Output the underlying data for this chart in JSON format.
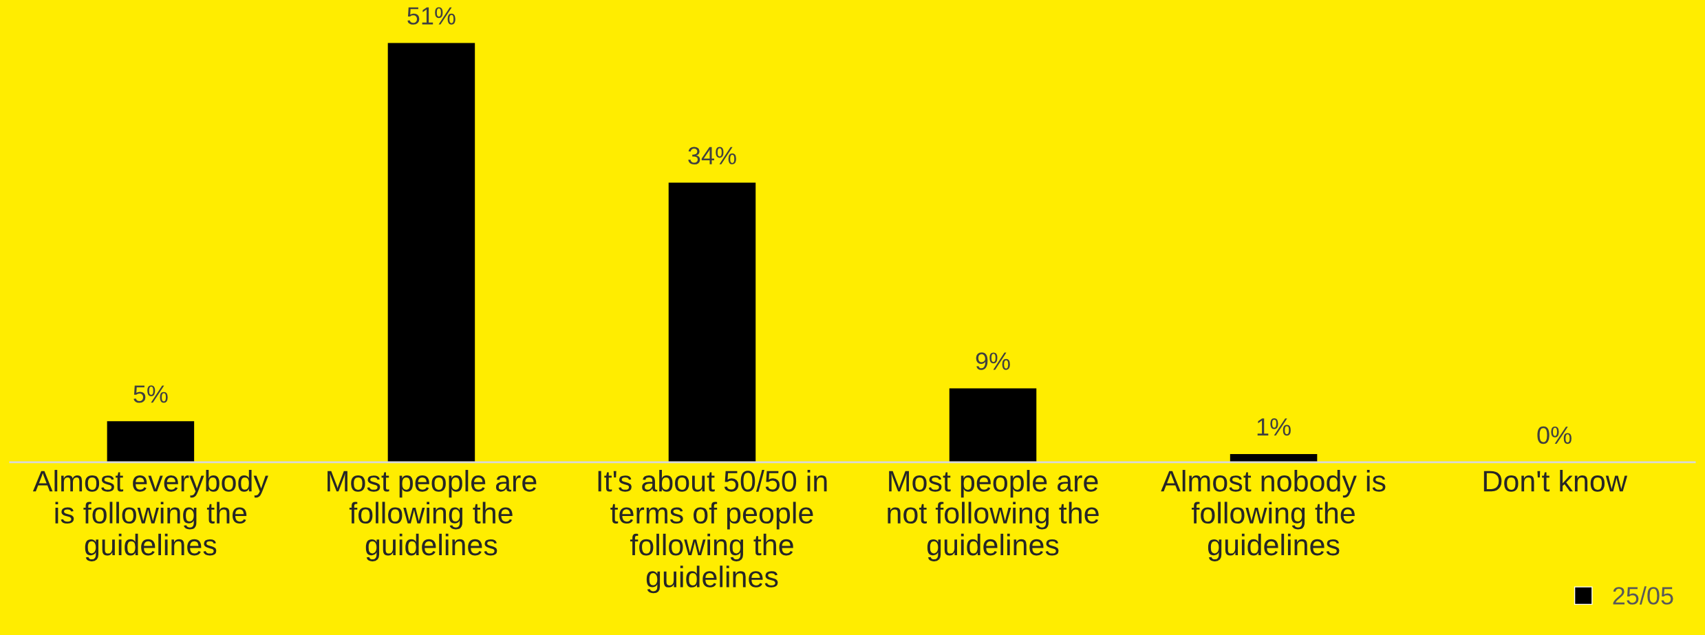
{
  "chart_data": {
    "type": "bar",
    "categories": [
      "Almost everybody\nis following the\nguidelines",
      "Most people are\nfollowing the\nguidelines",
      "It's about 50/50 in\nterms of people\nfollowing the\nguidelines",
      "Most people are\nnot following the\nguidelines",
      "Almost nobody is\nfollowing the\nguidelines",
      "Don't know"
    ],
    "series": [
      {
        "name": "25/05",
        "color": "#000000",
        "values": [
          5,
          51,
          34,
          9,
          1,
          0
        ],
        "value_labels": [
          "5%",
          "51%",
          "34%",
          "9%",
          "1%",
          "0%"
        ]
      }
    ],
    "legend": "bottom right"
  }
}
